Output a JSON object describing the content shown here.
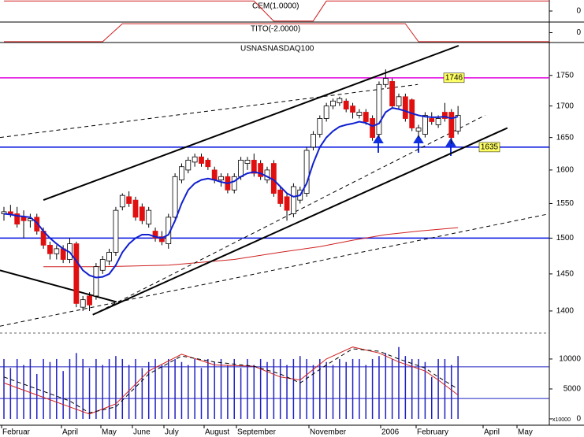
{
  "chart_data": [
    {
      "type": "step",
      "title": "CEM(1.0000)",
      "x": [
        0,
        38,
        41,
        47,
        49,
        82.9
      ],
      "values": [
        1,
        1,
        -1,
        -1,
        1,
        1
      ],
      "color": "#d02020",
      "ylim": [
        -1.1,
        1.1
      ],
      "yticks": [
        0
      ]
    },
    {
      "type": "step",
      "title": "TITO(-2.0000)",
      "x": [
        0,
        15,
        18,
        61,
        63,
        82.9
      ],
      "values": [
        -1,
        -1,
        1,
        1,
        -1,
        -1
      ],
      "color": "#d02020",
      "ylim": [
        -1.1,
        1.1
      ],
      "yticks": [
        0
      ]
    },
    {
      "type": "candlestick",
      "title": "USNASNASDAQ100",
      "log_scale": true,
      "ylim": [
        1371,
        1804
      ],
      "yticks": [
        1400,
        1450,
        1500,
        1550,
        1600,
        1650,
        1700,
        1750
      ],
      "up_color": "#ffffff",
      "down_color": "#e01010",
      "open": [
        1535,
        1538,
        1535,
        1530,
        1525,
        1530,
        1510,
        1490,
        1478,
        1485,
        1470,
        1492,
        1405,
        1420,
        1420,
        1455,
        1468,
        1480,
        1545,
        1560,
        1555,
        1545,
        1520,
        1510,
        1502,
        1492,
        1530,
        1585,
        1600,
        1612,
        1620,
        1615,
        1600,
        1585,
        1590,
        1570,
        1590,
        1610,
        1615,
        1610,
        1585,
        1610,
        1570,
        1560,
        1535,
        1555,
        1565,
        1635,
        1655,
        1680,
        1700,
        1705,
        1708,
        1700,
        1685,
        1690,
        1680,
        1655,
        1735,
        1740,
        1700,
        1715,
        1710,
        1660,
        1655,
        1680,
        1670,
        1690,
        1690,
        1660
      ],
      "high": [
        1545,
        1548,
        1545,
        1540,
        1535,
        1535,
        1515,
        1495,
        1490,
        1490,
        1500,
        1495,
        1420,
        1425,
        1465,
        1475,
        1485,
        1545,
        1565,
        1568,
        1560,
        1550,
        1545,
        1515,
        1510,
        1535,
        1595,
        1610,
        1620,
        1625,
        1625,
        1618,
        1605,
        1595,
        1595,
        1595,
        1620,
        1620,
        1625,
        1615,
        1605,
        1615,
        1575,
        1565,
        1580,
        1575,
        1635,
        1660,
        1685,
        1705,
        1712,
        1715,
        1712,
        1705,
        1695,
        1695,
        1685,
        1740,
        1760,
        1745,
        1720,
        1720,
        1712,
        1670,
        1690,
        1690,
        1685,
        1705,
        1695,
        1700
      ],
      "low": [
        1525,
        1530,
        1515,
        1500,
        1515,
        1505,
        1485,
        1470,
        1470,
        1465,
        1465,
        1405,
        1400,
        1400,
        1415,
        1450,
        1462,
        1475,
        1540,
        1545,
        1525,
        1520,
        1515,
        1495,
        1490,
        1485,
        1528,
        1580,
        1595,
        1605,
        1605,
        1600,
        1580,
        1575,
        1565,
        1565,
        1585,
        1600,
        1590,
        1585,
        1580,
        1560,
        1545,
        1525,
        1530,
        1550,
        1560,
        1630,
        1650,
        1675,
        1695,
        1700,
        1690,
        1680,
        1680,
        1670,
        1645,
        1650,
        1730,
        1695,
        1695,
        1675,
        1660,
        1650,
        1650,
        1670,
        1665,
        1675,
        1640,
        1655
      ],
      "close": [
        1538,
        1535,
        1520,
        1525,
        1528,
        1510,
        1490,
        1478,
        1485,
        1470,
        1492,
        1410,
        1415,
        1408,
        1460,
        1470,
        1480,
        1540,
        1562,
        1550,
        1530,
        1525,
        1540,
        1500,
        1495,
        1530,
        1590,
        1605,
        1615,
        1620,
        1610,
        1605,
        1585,
        1590,
        1570,
        1590,
        1615,
        1615,
        1595,
        1590,
        1600,
        1565,
        1550,
        1540,
        1575,
        1570,
        1630,
        1655,
        1680,
        1700,
        1708,
        1712,
        1695,
        1690,
        1690,
        1675,
        1650,
        1735,
        1745,
        1700,
        1715,
        1680,
        1665,
        1665,
        1685,
        1675,
        1680,
        1680,
        1650,
        1685
      ],
      "moving_average": {
        "color": "#1020d0",
        "values": [
          1535,
          1534,
          1532,
          1531,
          1530,
          1522,
          1510,
          1500,
          1492,
          1485,
          1480,
          1468,
          1455,
          1448,
          1445,
          1446,
          1450,
          1462,
          1480,
          1492,
          1500,
          1505,
          1505,
          1502,
          1500,
          1505,
          1525,
          1550,
          1570,
          1580,
          1585,
          1587,
          1585,
          1582,
          1580,
          1583,
          1590,
          1595,
          1597,
          1595,
          1590,
          1585,
          1575,
          1565,
          1560,
          1562,
          1580,
          1610,
          1635,
          1650,
          1660,
          1667,
          1670,
          1672,
          1675,
          1673,
          1668,
          1672,
          1690,
          1697,
          1695,
          1692,
          1688,
          1685,
          1683,
          1682,
          1682,
          1683,
          1680,
          1683
        ]
      },
      "long_average": {
        "color": "#d02020",
        "x": [
          6,
          15,
          25,
          35,
          42,
          48,
          53,
          58,
          63,
          69
        ],
        "values": [
          1460,
          1460,
          1462,
          1470,
          1480,
          1488,
          1497,
          1505,
          1510,
          1515
        ]
      },
      "trend_lines": [
        {
          "x": [
            6,
            69.1
          ],
          "values": [
            1555,
            1800
          ],
          "dashed": false
        },
        {
          "x": [
            13.5,
            76.5
          ],
          "values": [
            1395,
            1665
          ],
          "dashed": false
        },
        {
          "x": [
            -0.6,
            17.1
          ],
          "values": [
            1455,
            1412
          ],
          "dashed": false
        },
        {
          "x": [
            -0.6,
            62.9
          ],
          "values": [
            1650,
            1735
          ],
          "dashed": true
        },
        {
          "x": [
            13.5,
            73.1
          ],
          "values": [
            1395,
            1685
          ],
          "dashed": true
        },
        {
          "x": [
            -0.6,
            82.9
          ],
          "values": [
            1380,
            1535
          ],
          "dashed": true
        }
      ],
      "hlines": [
        {
          "value": 1746,
          "color": "#e000e0",
          "tagged": true
        },
        {
          "value": 1635,
          "color": "#0010e0",
          "tagged": true
        },
        {
          "value": 1500,
          "color": "#0010e0",
          "tagged": false
        }
      ]
    },
    {
      "type": "bar",
      "color": "#2020c0",
      "ylim": [
        0,
        14200
      ],
      "yticks": [
        0,
        5000,
        10000
      ],
      "unit_label": "x10000",
      "values": [
        10000,
        8500,
        10000,
        9000,
        10000,
        7500,
        10000,
        9500,
        10000,
        8000,
        10000,
        11000,
        10000,
        8500,
        10000,
        9000,
        10000,
        10500,
        10000,
        9000,
        10000,
        8500,
        9500,
        10000,
        9000,
        10000,
        10000,
        9500,
        9000,
        10000,
        8500,
        10000,
        9500,
        10000,
        9000,
        10000,
        8500,
        10000,
        9000,
        10000,
        9500,
        10000,
        10000,
        9000,
        10000,
        10500,
        10000,
        9000,
        10000,
        9500,
        9000,
        10000,
        9500,
        10000,
        10000,
        9000,
        10000,
        10500,
        11000,
        10000,
        12000,
        10500,
        10000,
        10000,
        9500,
        7000,
        10000,
        10000,
        9000,
        10500
      ],
      "lines": [
        {
          "color": "#d02020",
          "dashed": false,
          "x": [
            0,
            5,
            10,
            13,
            17,
            22,
            27,
            32,
            38,
            42,
            45,
            49,
            53,
            57,
            60,
            64,
            66,
            69
          ],
          "values": [
            6000,
            4000,
            2000,
            800,
            2500,
            8000,
            10800,
            9000,
            8800,
            7000,
            6500,
            10000,
            12000,
            11000,
            9500,
            8000,
            6500,
            4000
          ]
        },
        {
          "color": "#000000",
          "dashed": true,
          "x": [
            0,
            5,
            10,
            13,
            17,
            22,
            27,
            32,
            38,
            42,
            45,
            49,
            53,
            57,
            60,
            64,
            66,
            69
          ],
          "values": [
            7000,
            5000,
            3000,
            1000,
            2000,
            7500,
            10500,
            9500,
            8800,
            7500,
            6000,
            9000,
            11700,
            11300,
            10000,
            8500,
            7000,
            5000
          ]
        }
      ],
      "hlines": [
        8700,
        3400
      ],
      "x_labels": [
        "Februar",
        "April",
        "May",
        "June",
        "July",
        "August",
        "September",
        "November",
        "2006",
        "February",
        "April",
        "May"
      ]
    }
  ]
}
